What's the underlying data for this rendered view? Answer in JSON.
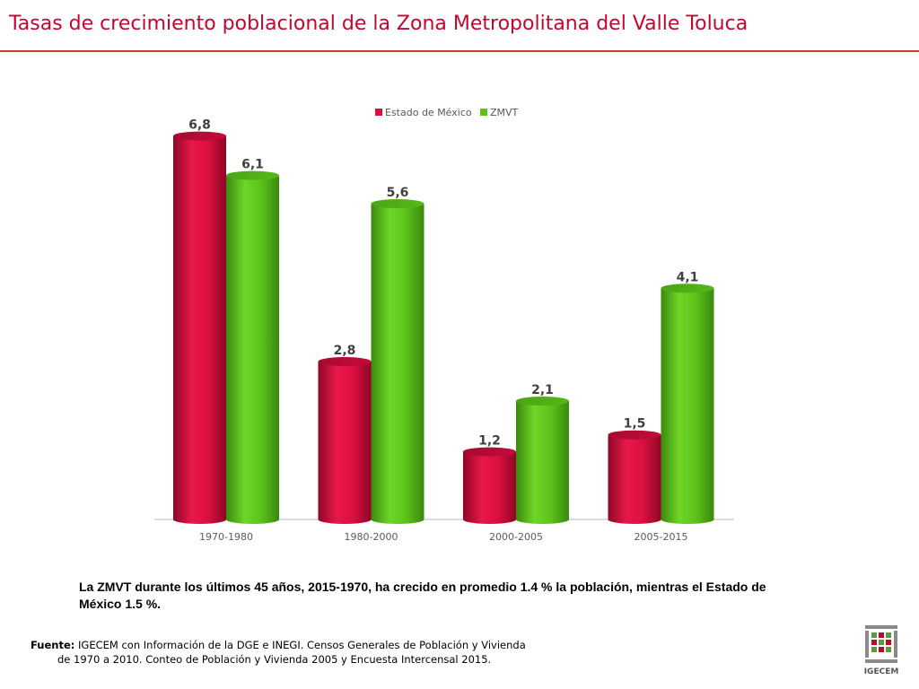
{
  "header": {
    "title": "Tasas de crecimiento poblacional de la Zona Metropolitana del Valle Toluca"
  },
  "chart_data": {
    "type": "bar",
    "title": "",
    "categories": [
      "1970-1980",
      "1980-2000",
      "2000-2005",
      "2005-2015"
    ],
    "series": [
      {
        "name": "Estado de México",
        "values": [
          6.8,
          2.8,
          1.2,
          1.5
        ],
        "labels": [
          "6,8",
          "2,8",
          "1,2",
          "1,5"
        ],
        "color": "#d8103f"
      },
      {
        "name": "ZMVT",
        "values": [
          6.1,
          5.6,
          2.1,
          4.1
        ],
        "labels": [
          "6,1",
          "5,6",
          "2,1",
          "4,1"
        ],
        "color": "#5cc31b"
      }
    ],
    "ylim": [
      0,
      7
    ],
    "grid": false,
    "legend": "top-center"
  },
  "note": {
    "text": "La ZMVT durante los últimos 45 años, 2015-1970, ha crecido en promedio 1.4 % la población, mientras el Estado de México 1.5 %."
  },
  "source": {
    "label": "Fuente:",
    "line1": "IGECEM con Información de la DGE e INEGI. Censos Generales de Población y Vivienda",
    "line2": "de 1970 a 2010. Conteo de Población y Vivienda 2005 y Encuesta Intercensal 2015."
  },
  "logo": {
    "text": "IGECEM"
  }
}
